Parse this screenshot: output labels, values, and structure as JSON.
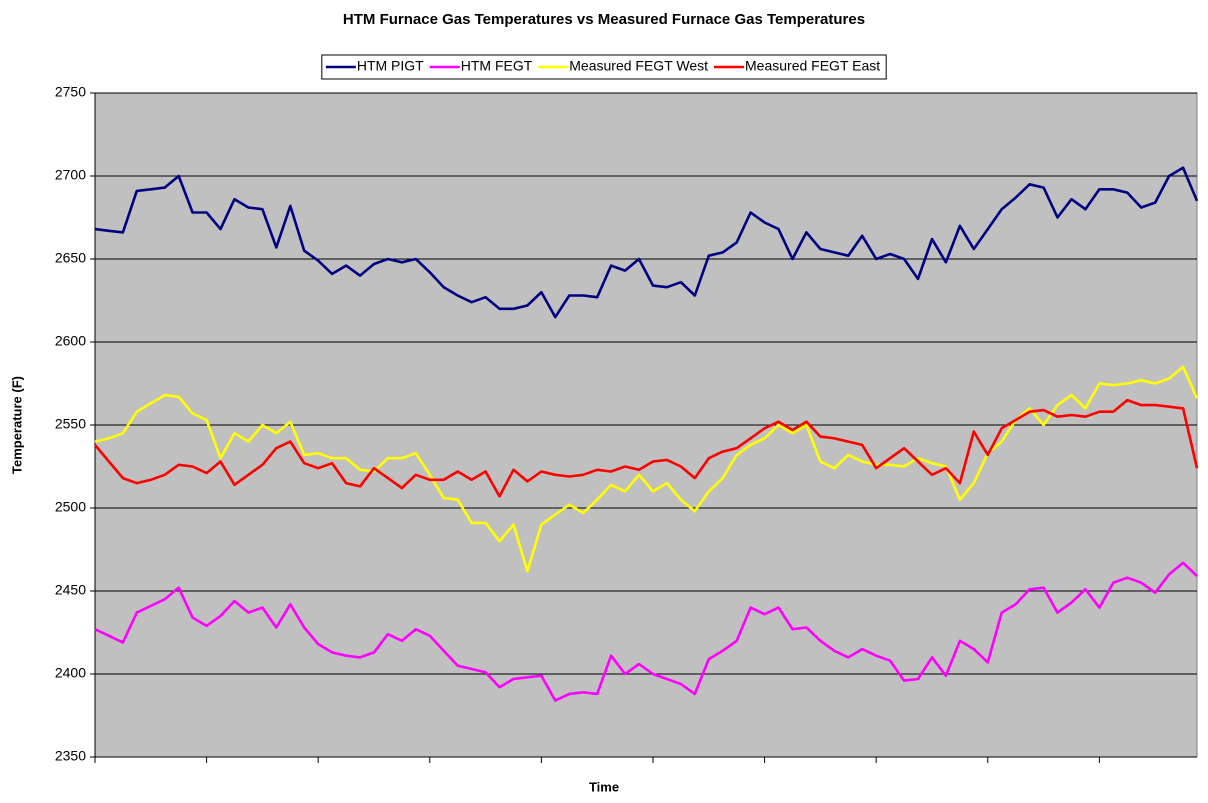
{
  "chart_data": {
    "type": "line",
    "title": "HTM Furnace Gas Temperatures vs Measured Furnace Gas Temperatures",
    "x_label": "Time",
    "y_label": "Temperature (F)",
    "ylim": [
      2350,
      2750
    ],
    "yticks": [
      2350,
      2400,
      2450,
      2500,
      2550,
      2600,
      2650,
      2700,
      2750
    ],
    "grid": true,
    "legend": "top",
    "categories": [
      null,
      null,
      null,
      null,
      null,
      null,
      null,
      null,
      null,
      null,
      null,
      null,
      null,
      null,
      null,
      null,
      null,
      null,
      null,
      null,
      null,
      null,
      null,
      null,
      null,
      null,
      null,
      null,
      null,
      null,
      null,
      null,
      null,
      null,
      null,
      null,
      null,
      null,
      null,
      null,
      null,
      null,
      null,
      null,
      null,
      null,
      null,
      null,
      null,
      null,
      null,
      null,
      null,
      null,
      null,
      null,
      null,
      null,
      null,
      null,
      null,
      null,
      null,
      null,
      null,
      null,
      null,
      null,
      null,
      null,
      null,
      null,
      null,
      null,
      null,
      null,
      null,
      null,
      null,
      null
    ],
    "series": [
      {
        "name": "HTM PIGT",
        "color": "#000080",
        "values": [
          2668,
          2667,
          2666,
          2691,
          2692,
          2693,
          2700,
          2678,
          2678,
          2668,
          2686,
          2681,
          2680,
          2657,
          2682,
          2655,
          2649,
          2641,
          2646,
          2640,
          2647,
          2650,
          2648,
          2650,
          2642,
          2633,
          2628,
          2624,
          2627,
          2620,
          2620,
          2622,
          2630,
          2615,
          2628,
          2628,
          2627,
          2646,
          2643,
          2650,
          2634,
          2633,
          2636,
          2628,
          2652,
          2654,
          2660,
          2678,
          2672,
          2668,
          2650,
          2666,
          2656,
          2654,
          2652,
          2664,
          2650,
          2653,
          2650,
          2638,
          2662,
          2648,
          2670,
          2656,
          2668,
          2680,
          2687,
          2695,
          2693,
          2675,
          2686,
          2680,
          2692,
          2692,
          2690,
          2681,
          2684,
          2700,
          2705,
          2685
        ]
      },
      {
        "name": "HTM FEGT",
        "color": "#ff00ff",
        "values": [
          2427,
          2423,
          2419,
          2437,
          2441,
          2445,
          2452,
          2434,
          2429,
          2435,
          2444,
          2437,
          2440,
          2428,
          2442,
          2428,
          2418,
          2413,
          2411,
          2410,
          2413,
          2424,
          2420,
          2427,
          2423,
          2414,
          2405,
          2403,
          2401,
          2392,
          2397,
          2398,
          2399,
          2384,
          2388,
          2389,
          2388,
          2411,
          2400,
          2406,
          2400,
          2397,
          2394,
          2388,
          2409,
          2414,
          2420,
          2440,
          2436,
          2440,
          2427,
          2428,
          2420,
          2414,
          2410,
          2415,
          2411,
          2408,
          2396,
          2397,
          2410,
          2399,
          2420,
          2415,
          2407,
          2437,
          2442,
          2451,
          2452,
          2437,
          2443,
          2451,
          2440,
          2455,
          2458,
          2455,
          2449,
          2460,
          2467,
          2459
        ]
      },
      {
        "name": "Measured FEGT West",
        "color": "#ffff00",
        "values": [
          2540,
          2542,
          2545,
          2558,
          2563,
          2568,
          2567,
          2557,
          2553,
          2530,
          2545,
          2540,
          2550,
          2545,
          2552,
          2532,
          2533,
          2530,
          2530,
          2523,
          2522,
          2530,
          2530,
          2533,
          2520,
          2506,
          2505,
          2491,
          2491,
          2480,
          2490,
          2462,
          2490,
          2496,
          2502,
          2497,
          2505,
          2514,
          2510,
          2520,
          2510,
          2515,
          2505,
          2498,
          2510,
          2518,
          2532,
          2538,
          2542,
          2550,
          2545,
          2550,
          2528,
          2524,
          2532,
          2528,
          2526,
          2526,
          2525,
          2530,
          2527,
          2525,
          2505,
          2515,
          2533,
          2540,
          2553,
          2560,
          2550,
          2562,
          2568,
          2560,
          2575,
          2574,
          2575,
          2577,
          2575,
          2578,
          2585,
          2566
        ]
      },
      {
        "name": "Measured FEGT East",
        "color": "#ff0000",
        "values": [
          2538,
          2528,
          2518,
          2515,
          2517,
          2520,
          2526,
          2525,
          2521,
          2528,
          2514,
          2520,
          2526,
          2536,
          2540,
          2527,
          2524,
          2527,
          2515,
          2513,
          2524,
          2518,
          2512,
          2520,
          2517,
          2517,
          2522,
          2517,
          2522,
          2507,
          2523,
          2516,
          2522,
          2520,
          2519,
          2520,
          2523,
          2522,
          2525,
          2523,
          2528,
          2529,
          2525,
          2518,
          2530,
          2534,
          2536,
          2542,
          2548,
          2552,
          2547,
          2552,
          2543,
          2542,
          2540,
          2538,
          2524,
          2530,
          2536,
          2528,
          2520,
          2524,
          2515,
          2546,
          2532,
          2548,
          2553,
          2558,
          2559,
          2555,
          2556,
          2555,
          2558,
          2558,
          2565,
          2562,
          2562,
          2561,
          2560,
          2524
        ]
      }
    ]
  }
}
